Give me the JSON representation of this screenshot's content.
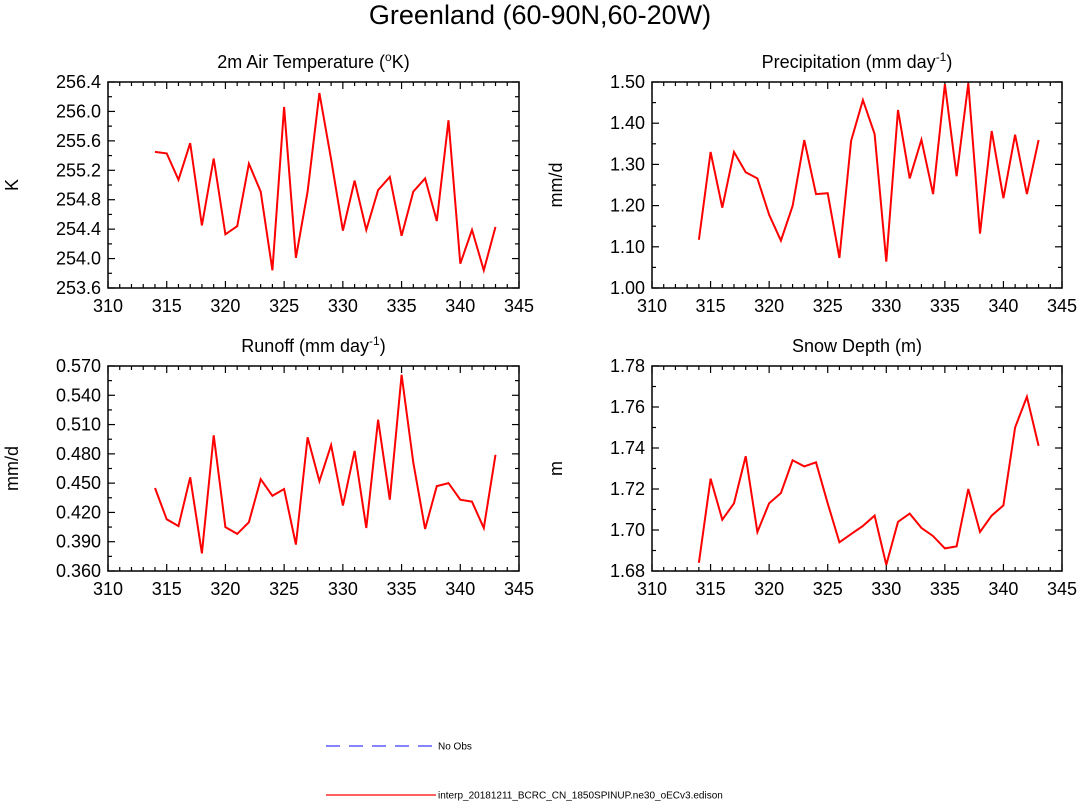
{
  "title": "Greenland (60-90N,60-20W)",
  "colors": {
    "model_line": "#ff0000",
    "obs_line": "#3a3aff",
    "axis": "#000000"
  },
  "legend": {
    "obs_label": "No Obs",
    "model_label": "interp_20181211_BCRC_CN_1850SPINUP.ne30_oECv3.edison"
  },
  "chart_data": [
    {
      "type": "line",
      "title_main": "2m Air Temperature (",
      "title_sup": "o",
      "title_end": "K)",
      "ylabel": "K",
      "xlim": [
        310,
        345
      ],
      "ylim": [
        253.6,
        256.4
      ],
      "xticks": [
        "310",
        "315",
        "320",
        "325",
        "330",
        "335",
        "340",
        "345"
      ],
      "yticks": [
        "253.6",
        "254.0",
        "254.4",
        "254.8",
        "255.2",
        "255.6",
        "256.0",
        "256.4"
      ],
      "x": [
        314,
        315,
        316,
        317,
        318,
        319,
        320,
        321,
        322,
        323,
        324,
        325,
        326,
        327,
        328,
        329,
        330,
        331,
        332,
        333,
        334,
        335,
        336,
        337,
        338,
        339,
        340,
        341,
        342,
        343
      ],
      "values": [
        255.45,
        255.43,
        255.07,
        255.57,
        254.45,
        255.36,
        254.33,
        254.44,
        255.29,
        254.91,
        253.84,
        256.06,
        254.01,
        254.91,
        256.25,
        255.35,
        254.38,
        255.06,
        254.39,
        254.93,
        255.11,
        254.31,
        254.91,
        255.09,
        254.51,
        255.88,
        253.93,
        254.39,
        253.84,
        254.43
      ]
    },
    {
      "type": "line",
      "title_main": "Precipitation (mm day",
      "title_sup": "-1",
      "title_end": ")",
      "ylabel": "mm/d",
      "xlim": [
        310,
        345
      ],
      "ylim": [
        1.0,
        1.5
      ],
      "xticks": [
        "310",
        "315",
        "320",
        "325",
        "330",
        "335",
        "340",
        "345"
      ],
      "yticks": [
        "1.00",
        "1.10",
        "1.20",
        "1.30",
        "1.40",
        "1.50"
      ],
      "x": [
        314,
        315,
        316,
        317,
        318,
        319,
        320,
        321,
        322,
        323,
        324,
        325,
        326,
        327,
        328,
        329,
        330,
        331,
        332,
        333,
        334,
        335,
        336,
        337,
        338,
        339,
        340,
        341,
        342,
        343
      ],
      "values": [
        1.117,
        1.33,
        1.195,
        1.33,
        1.281,
        1.266,
        1.178,
        1.115,
        1.199,
        1.359,
        1.228,
        1.23,
        1.073,
        1.357,
        1.456,
        1.374,
        1.064,
        1.432,
        1.266,
        1.36,
        1.228,
        1.495,
        1.271,
        1.497,
        1.132,
        1.381,
        1.218,
        1.372,
        1.228,
        1.359
      ]
    },
    {
      "type": "line",
      "title_main": "Runoff (mm day",
      "title_sup": "-1",
      "title_end": ")",
      "ylabel": "mm/d",
      "xlim": [
        310,
        345
      ],
      "ylim": [
        0.36,
        0.57
      ],
      "xticks": [
        "310",
        "315",
        "320",
        "325",
        "330",
        "335",
        "340",
        "345"
      ],
      "yticks": [
        "0.360",
        "0.390",
        "0.420",
        "0.450",
        "0.480",
        "0.510",
        "0.540",
        "0.570"
      ],
      "x": [
        314,
        315,
        316,
        317,
        318,
        319,
        320,
        321,
        322,
        323,
        324,
        325,
        326,
        327,
        328,
        329,
        330,
        331,
        332,
        333,
        334,
        335,
        336,
        337,
        338,
        339,
        340,
        341,
        342,
        343
      ],
      "values": [
        0.445,
        0.413,
        0.406,
        0.456,
        0.378,
        0.499,
        0.405,
        0.398,
        0.41,
        0.454,
        0.437,
        0.444,
        0.387,
        0.497,
        0.452,
        0.489,
        0.427,
        0.483,
        0.404,
        0.515,
        0.433,
        0.561,
        0.471,
        0.403,
        0.447,
        0.45,
        0.433,
        0.431,
        0.404,
        0.479
      ]
    },
    {
      "type": "line",
      "title_main": "Snow Depth (m)",
      "title_sup": "",
      "title_end": "",
      "ylabel": "m",
      "xlim": [
        310,
        345
      ],
      "ylim": [
        1.68,
        1.78
      ],
      "xticks": [
        "310",
        "315",
        "320",
        "325",
        "330",
        "335",
        "340",
        "345"
      ],
      "yticks": [
        "1.68",
        "1.70",
        "1.72",
        "1.74",
        "1.76",
        "1.78"
      ],
      "x": [
        314,
        315,
        316,
        317,
        318,
        319,
        320,
        321,
        322,
        323,
        324,
        325,
        326,
        327,
        328,
        329,
        330,
        331,
        332,
        333,
        334,
        335,
        336,
        337,
        338,
        339,
        340,
        341,
        342,
        343
      ],
      "values": [
        1.684,
        1.725,
        1.705,
        1.713,
        1.736,
        1.699,
        1.713,
        1.718,
        1.734,
        1.731,
        1.733,
        1.713,
        1.694,
        1.698,
        1.702,
        1.707,
        1.683,
        1.704,
        1.708,
        1.701,
        1.697,
        1.691,
        1.692,
        1.72,
        1.699,
        1.707,
        1.712,
        1.75,
        1.765,
        1.741
      ]
    }
  ]
}
